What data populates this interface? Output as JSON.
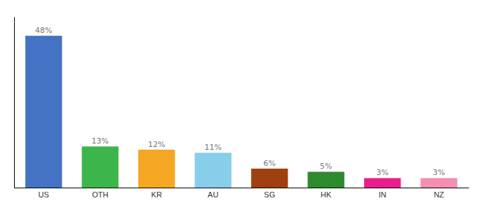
{
  "chart_data": {
    "type": "bar",
    "categories": [
      "US",
      "OTH",
      "KR",
      "AU",
      "SG",
      "HK",
      "IN",
      "NZ"
    ],
    "values": [
      48,
      13,
      12,
      11,
      6,
      5,
      3,
      3
    ],
    "value_labels": [
      "48%",
      "13%",
      "12%",
      "11%",
      "6%",
      "5%",
      "3%",
      "3%"
    ],
    "colors": [
      "#4472c4",
      "#3cb54a",
      "#f5a623",
      "#87ceeb",
      "#a04010",
      "#2d8a2d",
      "#e91e8c",
      "#f48fb1"
    ],
    "ylim": [
      0,
      54
    ],
    "data_labels": true,
    "tick_labels": "x",
    "grid": false
  }
}
